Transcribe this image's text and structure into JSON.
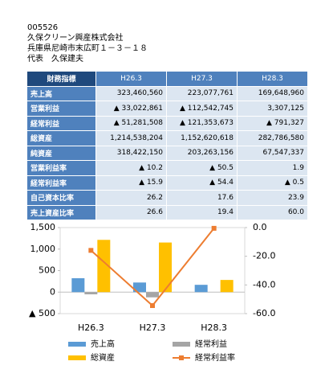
{
  "header": {
    "code": "005526",
    "company": "久保クリーン興産株式会社",
    "address": "兵庫県尼崎市末広町１－３－１８",
    "representative": "代表　久保建夫"
  },
  "table": {
    "columns": [
      "財務指標",
      "H26.3",
      "H27.3",
      "H28.3"
    ],
    "rows": [
      [
        "売上高",
        "323,460,560",
        "223,077,761",
        "169,648,960"
      ],
      [
        "営業利益",
        "▲ 33,022,861",
        "▲ 112,542,745",
        "3,307,125"
      ],
      [
        "経常利益",
        "▲ 51,281,508",
        "▲ 121,353,673",
        "▲ 791,327"
      ],
      [
        "総資産",
        "1,214,538,204",
        "1,152,620,618",
        "282,786,580"
      ],
      [
        "純資産",
        "318,422,150",
        "203,263,156",
        "67,547,337"
      ],
      [
        "営業利益率",
        "▲ 10.2",
        "▲ 50.5",
        "1.9"
      ],
      [
        "経常利益率",
        "▲ 15.9",
        "▲ 54.4",
        "▲ 0.5"
      ],
      [
        "自己資本比率",
        "26.2",
        "17.6",
        "23.9"
      ],
      [
        "売上資産比率",
        "26.6",
        "19.4",
        "60.0"
      ]
    ]
  },
  "chart_data": {
    "type": "bar",
    "categories": [
      "H26.3",
      "H27.3",
      "H28.3"
    ],
    "series": [
      {
        "name": "売上高",
        "color": "#5b9bd5",
        "values": [
          323.46,
          223.08,
          169.65
        ]
      },
      {
        "name": "経常利益",
        "color": "#a5a5a5",
        "values": [
          -51.28,
          -121.35,
          -0.79
        ]
      },
      {
        "name": "総資産",
        "color": "#ffc000",
        "values": [
          1214.54,
          1152.62,
          282.79
        ]
      },
      {
        "name": "経常利益率",
        "color": "#ed7d31",
        "type": "line",
        "axis": "y2",
        "values": [
          -15.9,
          -54.4,
          -0.5
        ]
      }
    ],
    "ylim": [
      -500,
      1500
    ],
    "yticks": [
      {
        "value": -500,
        "label": "▲ 500"
      },
      0,
      500,
      {
        "value": 1000,
        "label": "1,000"
      },
      {
        "value": 1500,
        "label": "1,500"
      }
    ],
    "y2lim": [
      -60,
      0
    ],
    "y2ticks": [
      {
        "value": 0,
        "label": "0.0"
      },
      {
        "value": -20,
        "label": "-20.0"
      },
      {
        "value": -40,
        "label": "-40.0"
      },
      {
        "value": -60,
        "label": "-60.0"
      }
    ]
  }
}
